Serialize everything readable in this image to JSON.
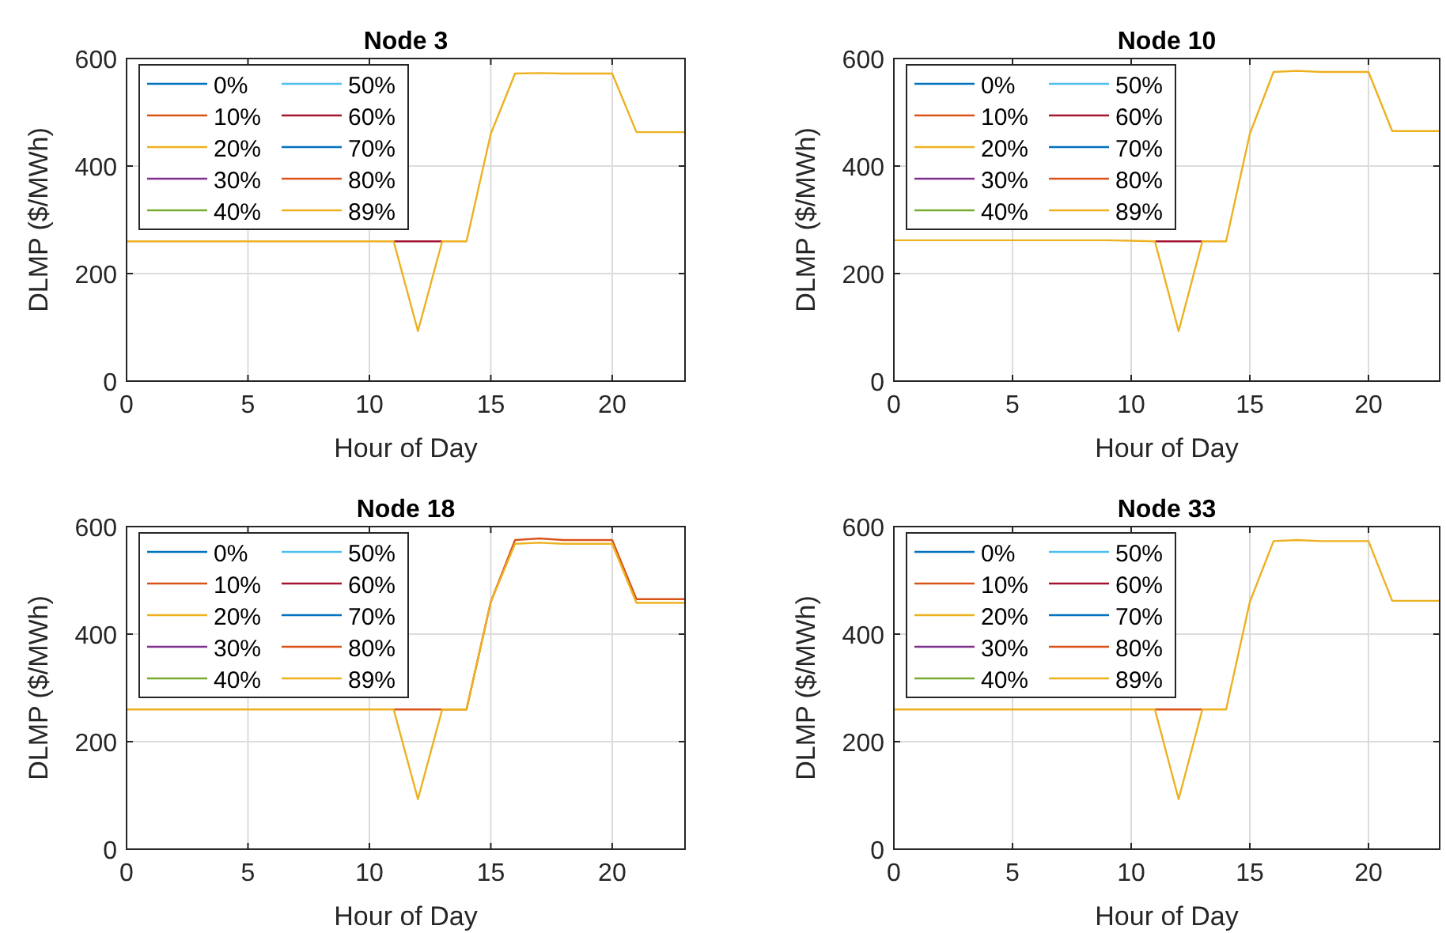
{
  "chart_data": [
    {
      "type": "line",
      "title": "Node 3",
      "xlabel": "Hour of Day",
      "ylabel": "DLMP ($/MWh)",
      "x": [
        0,
        1,
        2,
        3,
        4,
        5,
        6,
        7,
        8,
        9,
        10,
        11,
        12,
        13,
        14,
        15,
        16,
        17,
        18,
        19,
        20,
        21,
        22,
        23
      ],
      "xlim": [
        0,
        23
      ],
      "xticks": [
        0,
        5,
        10,
        15,
        20
      ],
      "ylim": [
        0,
        600
      ],
      "yticks": [
        0,
        200,
        400,
        600
      ],
      "grid": true,
      "legend": "top left",
      "series": [
        {
          "name": "0%",
          "color": "#0072bd",
          "values": [
            null,
            null,
            null,
            null,
            null,
            null,
            null,
            null,
            null,
            null,
            null,
            null,
            null,
            null,
            null,
            null,
            null,
            null,
            null,
            null,
            null,
            null,
            null,
            null
          ]
        },
        {
          "name": "10%",
          "color": "#d95319",
          "values": [
            null,
            null,
            null,
            null,
            null,
            null,
            null,
            null,
            null,
            null,
            null,
            null,
            null,
            null,
            null,
            null,
            null,
            null,
            null,
            null,
            null,
            null,
            null,
            null
          ]
        },
        {
          "name": "20%",
          "color": "#edb120",
          "values": [
            null,
            null,
            null,
            null,
            null,
            null,
            null,
            null,
            null,
            null,
            null,
            null,
            null,
            null,
            null,
            null,
            null,
            null,
            null,
            null,
            null,
            null,
            null,
            null
          ]
        },
        {
          "name": "30%",
          "color": "#7e2f8e",
          "values": [
            null,
            null,
            null,
            null,
            null,
            null,
            null,
            null,
            null,
            null,
            null,
            null,
            null,
            null,
            null,
            null,
            null,
            null,
            null,
            null,
            null,
            null,
            null,
            null
          ]
        },
        {
          "name": "40%",
          "color": "#77ac30",
          "values": [
            null,
            null,
            null,
            null,
            null,
            null,
            null,
            null,
            null,
            null,
            null,
            null,
            null,
            null,
            null,
            null,
            null,
            null,
            null,
            null,
            null,
            null,
            null,
            null
          ]
        },
        {
          "name": "50%",
          "color": "#4dbeee",
          "values": [
            null,
            null,
            null,
            null,
            null,
            null,
            null,
            null,
            null,
            null,
            null,
            null,
            null,
            null,
            null,
            null,
            null,
            null,
            null,
            null,
            null,
            null,
            null,
            null
          ]
        },
        {
          "name": "60%",
          "color": "#a2142f",
          "values": [
            null,
            null,
            null,
            null,
            null,
            null,
            null,
            null,
            null,
            null,
            null,
            260,
            260,
            260,
            null,
            null,
            null,
            null,
            null,
            null,
            null,
            null,
            null,
            null
          ]
        },
        {
          "name": "70%",
          "color": "#0072bd",
          "values": [
            null,
            null,
            null,
            null,
            null,
            null,
            null,
            null,
            null,
            null,
            null,
            null,
            null,
            null,
            null,
            null,
            null,
            null,
            null,
            null,
            null,
            null,
            null,
            null
          ]
        },
        {
          "name": "80%",
          "color": "#d95319",
          "values": [
            null,
            null,
            null,
            null,
            null,
            null,
            null,
            null,
            null,
            null,
            null,
            null,
            null,
            null,
            null,
            null,
            null,
            null,
            null,
            null,
            null,
            null,
            null,
            null
          ]
        },
        {
          "name": "89%",
          "color": "#edb120",
          "values": [
            260,
            260,
            260,
            260,
            260,
            260,
            260,
            260,
            260,
            260,
            260,
            260,
            93,
            260,
            260,
            460,
            572,
            573,
            572,
            572,
            572,
            463,
            463,
            463
          ]
        }
      ]
    },
    {
      "type": "line",
      "title": "Node 10",
      "xlabel": "Hour of Day",
      "ylabel": "DLMP ($/MWh)",
      "x": [
        0,
        1,
        2,
        3,
        4,
        5,
        6,
        7,
        8,
        9,
        10,
        11,
        12,
        13,
        14,
        15,
        16,
        17,
        18,
        19,
        20,
        21,
        22,
        23
      ],
      "xlim": [
        0,
        23
      ],
      "xticks": [
        0,
        5,
        10,
        15,
        20
      ],
      "ylim": [
        0,
        600
      ],
      "yticks": [
        0,
        200,
        400,
        600
      ],
      "grid": true,
      "legend": "top left",
      "series": [
        {
          "name": "0%",
          "color": "#0072bd",
          "values": [
            null,
            null,
            null,
            null,
            null,
            null,
            null,
            null,
            null,
            null,
            null,
            null,
            null,
            null,
            null,
            null,
            null,
            null,
            null,
            null,
            null,
            null,
            null,
            null
          ]
        },
        {
          "name": "10%",
          "color": "#d95319",
          "values": [
            null,
            null,
            null,
            null,
            null,
            null,
            null,
            null,
            null,
            null,
            null,
            null,
            null,
            null,
            null,
            null,
            null,
            null,
            null,
            null,
            null,
            null,
            null,
            null
          ]
        },
        {
          "name": "20%",
          "color": "#edb120",
          "values": [
            null,
            null,
            null,
            null,
            null,
            null,
            null,
            null,
            null,
            null,
            null,
            null,
            null,
            null,
            null,
            null,
            null,
            null,
            null,
            null,
            null,
            null,
            null,
            null
          ]
        },
        {
          "name": "30%",
          "color": "#7e2f8e",
          "values": [
            null,
            null,
            null,
            null,
            null,
            null,
            null,
            null,
            null,
            null,
            null,
            null,
            null,
            null,
            null,
            null,
            null,
            null,
            null,
            null,
            null,
            null,
            null,
            null
          ]
        },
        {
          "name": "40%",
          "color": "#77ac30",
          "values": [
            null,
            null,
            null,
            null,
            null,
            null,
            null,
            null,
            null,
            null,
            null,
            null,
            null,
            null,
            null,
            null,
            null,
            null,
            null,
            null,
            null,
            null,
            null,
            null
          ]
        },
        {
          "name": "50%",
          "color": "#4dbeee",
          "values": [
            null,
            null,
            null,
            null,
            null,
            null,
            null,
            null,
            null,
            null,
            null,
            null,
            null,
            null,
            null,
            null,
            null,
            null,
            null,
            null,
            null,
            null,
            null,
            null
          ]
        },
        {
          "name": "60%",
          "color": "#a2142f",
          "values": [
            null,
            null,
            null,
            null,
            null,
            null,
            null,
            null,
            null,
            null,
            null,
            260,
            260,
            260,
            null,
            null,
            null,
            null,
            null,
            null,
            null,
            null,
            null,
            null
          ]
        },
        {
          "name": "70%",
          "color": "#0072bd",
          "values": [
            null,
            null,
            null,
            null,
            null,
            null,
            null,
            null,
            null,
            null,
            null,
            null,
            null,
            null,
            null,
            null,
            null,
            null,
            null,
            null,
            null,
            null,
            null,
            null
          ]
        },
        {
          "name": "80%",
          "color": "#d95319",
          "values": [
            null,
            null,
            null,
            null,
            null,
            null,
            null,
            null,
            null,
            null,
            null,
            null,
            null,
            null,
            null,
            null,
            null,
            null,
            null,
            null,
            null,
            null,
            null,
            null
          ]
        },
        {
          "name": "89%",
          "color": "#edb120",
          "values": [
            262,
            262,
            262,
            262,
            262,
            262,
            262,
            262,
            262,
            262,
            261,
            260,
            93,
            260,
            260,
            460,
            575,
            577,
            575,
            575,
            575,
            465,
            465,
            465
          ]
        }
      ]
    },
    {
      "type": "line",
      "title": "Node 18",
      "xlabel": "Hour of Day",
      "ylabel": "DLMP ($/MWh)",
      "x": [
        0,
        1,
        2,
        3,
        4,
        5,
        6,
        7,
        8,
        9,
        10,
        11,
        12,
        13,
        14,
        15,
        16,
        17,
        18,
        19,
        20,
        21,
        22,
        23
      ],
      "xlim": [
        0,
        23
      ],
      "xticks": [
        0,
        5,
        10,
        15,
        20
      ],
      "ylim": [
        0,
        600
      ],
      "yticks": [
        0,
        200,
        400,
        600
      ],
      "grid": true,
      "legend": "top left",
      "series": [
        {
          "name": "0%",
          "color": "#0072bd",
          "values": [
            null,
            null,
            null,
            null,
            null,
            null,
            null,
            null,
            null,
            null,
            null,
            null,
            null,
            null,
            null,
            null,
            null,
            null,
            null,
            null,
            null,
            null,
            null,
            null
          ]
        },
        {
          "name": "10%",
          "color": "#d95319",
          "values": [
            null,
            null,
            null,
            null,
            null,
            null,
            null,
            null,
            null,
            null,
            null,
            null,
            null,
            null,
            null,
            null,
            null,
            null,
            null,
            null,
            null,
            null,
            null,
            null
          ]
        },
        {
          "name": "20%",
          "color": "#edb120",
          "values": [
            null,
            null,
            null,
            null,
            null,
            null,
            null,
            null,
            null,
            null,
            null,
            null,
            null,
            null,
            null,
            null,
            null,
            null,
            null,
            null,
            null,
            null,
            null,
            null
          ]
        },
        {
          "name": "30%",
          "color": "#7e2f8e",
          "values": [
            null,
            null,
            null,
            null,
            null,
            null,
            null,
            null,
            null,
            null,
            null,
            null,
            null,
            null,
            null,
            null,
            null,
            null,
            null,
            null,
            null,
            null,
            null,
            null
          ]
        },
        {
          "name": "40%",
          "color": "#77ac30",
          "values": [
            null,
            null,
            null,
            null,
            null,
            null,
            null,
            null,
            null,
            null,
            null,
            null,
            null,
            null,
            null,
            null,
            null,
            null,
            null,
            null,
            null,
            null,
            null,
            null
          ]
        },
        {
          "name": "50%",
          "color": "#4dbeee",
          "values": [
            null,
            null,
            null,
            null,
            null,
            null,
            null,
            null,
            null,
            null,
            null,
            null,
            null,
            null,
            null,
            null,
            null,
            null,
            null,
            null,
            null,
            null,
            null,
            null
          ]
        },
        {
          "name": "60%",
          "color": "#a2142f",
          "values": [
            null,
            null,
            null,
            null,
            null,
            null,
            null,
            null,
            null,
            null,
            null,
            null,
            null,
            null,
            null,
            null,
            null,
            null,
            null,
            null,
            null,
            null,
            null,
            null
          ]
        },
        {
          "name": "70%",
          "color": "#0072bd",
          "values": [
            null,
            null,
            null,
            null,
            null,
            null,
            null,
            null,
            null,
            null,
            null,
            null,
            null,
            null,
            null,
            null,
            null,
            null,
            null,
            null,
            null,
            null,
            null,
            null
          ]
        },
        {
          "name": "80%",
          "color": "#d95319",
          "values": [
            null,
            null,
            null,
            null,
            null,
            null,
            null,
            null,
            null,
            null,
            null,
            260,
            260,
            260,
            260,
            460,
            575,
            578,
            575,
            575,
            575,
            465,
            465,
            465
          ]
        },
        {
          "name": "89%",
          "color": "#edb120",
          "values": [
            260,
            260,
            260,
            260,
            260,
            260,
            260,
            260,
            260,
            260,
            260,
            260,
            93,
            260,
            260,
            460,
            568,
            570,
            568,
            568,
            568,
            458,
            458,
            458
          ]
        }
      ]
    },
    {
      "type": "line",
      "title": "Node 33",
      "xlabel": "Hour of Day",
      "ylabel": "DLMP ($/MWh)",
      "x": [
        0,
        1,
        2,
        3,
        4,
        5,
        6,
        7,
        8,
        9,
        10,
        11,
        12,
        13,
        14,
        15,
        16,
        17,
        18,
        19,
        20,
        21,
        22,
        23
      ],
      "xlim": [
        0,
        23
      ],
      "xticks": [
        0,
        5,
        10,
        15,
        20
      ],
      "ylim": [
        0,
        600
      ],
      "yticks": [
        0,
        200,
        400,
        600
      ],
      "grid": true,
      "legend": "top left",
      "series": [
        {
          "name": "0%",
          "color": "#0072bd",
          "values": [
            null,
            null,
            null,
            null,
            null,
            null,
            null,
            null,
            null,
            null,
            null,
            null,
            null,
            null,
            null,
            null,
            null,
            null,
            null,
            null,
            null,
            null,
            null,
            null
          ]
        },
        {
          "name": "10%",
          "color": "#d95319",
          "values": [
            null,
            null,
            null,
            null,
            null,
            null,
            null,
            null,
            null,
            null,
            null,
            null,
            null,
            null,
            null,
            null,
            null,
            null,
            null,
            null,
            null,
            null,
            null,
            null
          ]
        },
        {
          "name": "20%",
          "color": "#edb120",
          "values": [
            null,
            null,
            null,
            null,
            null,
            null,
            null,
            null,
            null,
            null,
            null,
            null,
            null,
            null,
            null,
            null,
            null,
            null,
            null,
            null,
            null,
            null,
            null,
            null
          ]
        },
        {
          "name": "30%",
          "color": "#7e2f8e",
          "values": [
            null,
            null,
            null,
            null,
            null,
            null,
            null,
            null,
            null,
            null,
            null,
            null,
            null,
            null,
            null,
            null,
            null,
            null,
            null,
            null,
            null,
            null,
            null,
            null
          ]
        },
        {
          "name": "40%",
          "color": "#77ac30",
          "values": [
            null,
            null,
            null,
            null,
            null,
            null,
            null,
            null,
            null,
            null,
            null,
            null,
            null,
            null,
            null,
            null,
            null,
            null,
            null,
            null,
            null,
            null,
            null,
            null
          ]
        },
        {
          "name": "50%",
          "color": "#4dbeee",
          "values": [
            null,
            null,
            null,
            null,
            null,
            null,
            null,
            null,
            null,
            null,
            null,
            null,
            null,
            null,
            null,
            null,
            null,
            null,
            null,
            null,
            null,
            null,
            null,
            null
          ]
        },
        {
          "name": "60%",
          "color": "#a2142f",
          "values": [
            null,
            null,
            null,
            null,
            null,
            null,
            null,
            null,
            null,
            null,
            null,
            null,
            null,
            null,
            null,
            null,
            null,
            null,
            null,
            null,
            null,
            null,
            null,
            null
          ]
        },
        {
          "name": "70%",
          "color": "#0072bd",
          "values": [
            null,
            null,
            null,
            null,
            null,
            null,
            null,
            null,
            null,
            null,
            null,
            null,
            null,
            null,
            null,
            null,
            null,
            null,
            null,
            null,
            null,
            null,
            null,
            null
          ]
        },
        {
          "name": "80%",
          "color": "#d95319",
          "values": [
            null,
            null,
            null,
            null,
            null,
            null,
            null,
            null,
            null,
            null,
            null,
            260,
            260,
            260,
            null,
            null,
            null,
            null,
            null,
            null,
            null,
            null,
            null,
            null
          ]
        },
        {
          "name": "89%",
          "color": "#edb120",
          "values": [
            260,
            260,
            260,
            260,
            260,
            260,
            260,
            260,
            260,
            260,
            260,
            260,
            93,
            260,
            260,
            460,
            573,
            575,
            573,
            573,
            573,
            462,
            462,
            462
          ]
        }
      ]
    }
  ]
}
